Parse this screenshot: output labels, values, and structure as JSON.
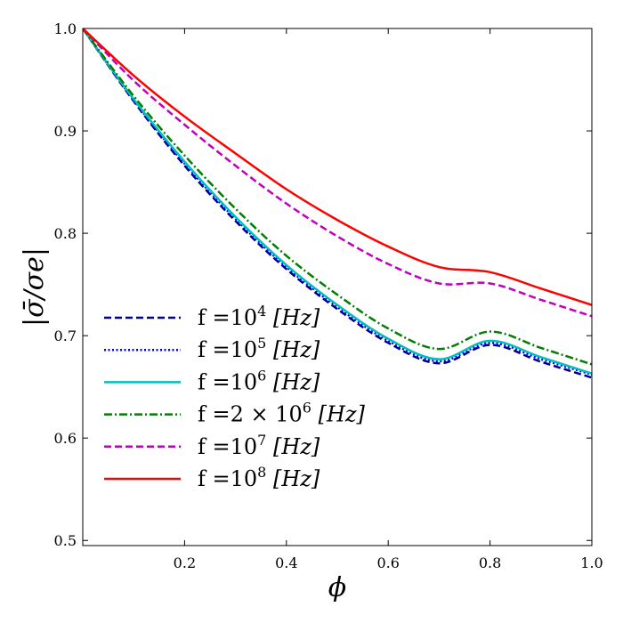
{
  "chart_data": {
    "type": "line",
    "xlabel": "ϕ",
    "ylabel": "|σ̄/σe|",
    "xlim": [
      0.0,
      1.0
    ],
    "ylim": [
      0.495,
      1.0
    ],
    "x_ticks": [
      0.2,
      0.4,
      0.6,
      0.8,
      1.0
    ],
    "x_tick_labels": [
      "0.2",
      "0.4",
      "0.6",
      "0.8",
      "1.0"
    ],
    "y_ticks": [
      0.5,
      0.6,
      0.7,
      0.8,
      0.9,
      1.0
    ],
    "y_tick_labels": [
      "0.5",
      "0.6",
      "0.7",
      "0.8",
      "0.9",
      "1.0"
    ],
    "grid": false,
    "legend_position": "lower-left",
    "x": [
      0.0,
      0.1,
      0.2,
      0.3,
      0.4,
      0.5,
      0.6,
      0.7,
      0.8,
      0.9,
      1.0
    ],
    "series": [
      {
        "name": "f =10^4 [Hz]",
        "legend_prefix": "f =10",
        "legend_exp": "4",
        "legend_suffix": " [Hz]",
        "color": "#00008b",
        "dash": "dashed",
        "values": [
          1.0,
          0.929,
          0.866,
          0.812,
          0.765,
          0.726,
          0.693,
          0.673,
          0.691,
          0.6745,
          0.659
        ]
      },
      {
        "name": "f =10^5 [Hz]",
        "legend_prefix": "f =10",
        "legend_exp": "5",
        "legend_suffix": " [Hz]",
        "color": "#0000ff",
        "dash": "dotted",
        "values": [
          1.0,
          0.93,
          0.868,
          0.814,
          0.767,
          0.728,
          0.695,
          0.675,
          0.693,
          0.677,
          0.662
        ]
      },
      {
        "name": "f =10^6 [Hz]",
        "legend_prefix": "f =10",
        "legend_exp": "6",
        "legend_suffix": " [Hz]",
        "color": "#00bfbf",
        "dash": "solid",
        "values": [
          1.0,
          0.931,
          0.87,
          0.816,
          0.769,
          0.73,
          0.697,
          0.677,
          0.695,
          0.679,
          0.663
        ]
      },
      {
        "name": "f =2 × 10^6 [Hz]",
        "legend_prefix": "f =2 × 10",
        "legend_exp": "6",
        "legend_suffix": " [Hz]",
        "color": "#007f00",
        "dash": "dashdot",
        "values": [
          1.0,
          0.934,
          0.876,
          0.824,
          0.778,
          0.74,
          0.707,
          0.687,
          0.704,
          0.688,
          0.672
        ]
      },
      {
        "name": "f =10^7 [Hz]",
        "legend_prefix": "f =10",
        "legend_exp": "7",
        "legend_suffix": " [Hz]",
        "color": "#bf00bf",
        "dash": "dashed",
        "values": [
          1.0,
          0.949,
          0.906,
          0.866,
          0.829,
          0.797,
          0.77,
          0.751,
          0.751,
          0.735,
          0.719
        ]
      },
      {
        "name": "f =10^8 [Hz]",
        "legend_prefix": "f =10",
        "legend_exp": "8",
        "legend_suffix": " [Hz]",
        "color": "#ff0000",
        "dash": "solid",
        "values": [
          1.0,
          0.954,
          0.914,
          0.878,
          0.843,
          0.813,
          0.787,
          0.767,
          0.762,
          0.746,
          0.73
        ]
      }
    ]
  }
}
